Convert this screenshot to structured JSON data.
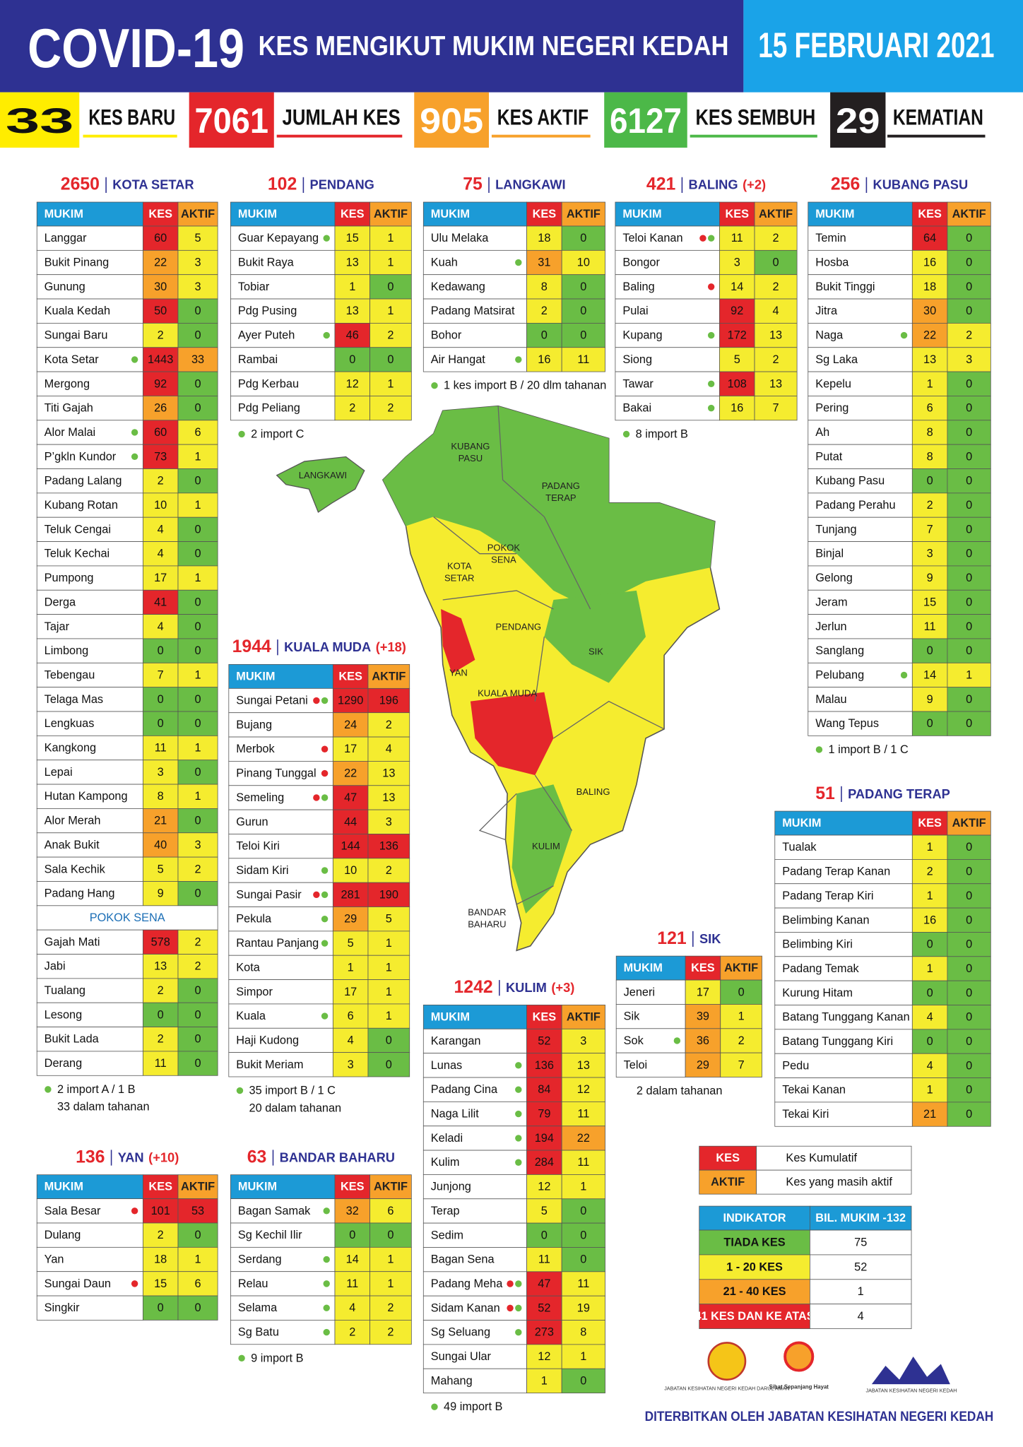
{
  "header": {
    "title": "COVID-19",
    "subtitle": "KES MENGIKUT MUKIM NEGERI KEDAH",
    "date": "15 FEBRUARI 2021"
  },
  "summary": [
    {
      "value": 33,
      "label": "KES BARU",
      "color": "#ffed00",
      "text_color": "#111111"
    },
    {
      "value": 7061,
      "label": "JUMLAH KES",
      "color": "#e4262b",
      "text_color": "#ffffff"
    },
    {
      "value": 905,
      "label": "KES AKTIF",
      "color": "#f7a12b",
      "text_color": "#ffffff"
    },
    {
      "value": 6127,
      "label": "KES SEMBUH",
      "color": "#4cb848",
      "text_color": "#ffffff"
    },
    {
      "value": 29,
      "label": "KEMATIAN",
      "color": "#231f20",
      "text_color": "#ffffff"
    }
  ],
  "columns": [
    "MUKIM",
    "KES",
    "AKTIF"
  ],
  "cell_colors": [
    {
      "max": 0,
      "color": "#6abd45"
    },
    {
      "max": 20,
      "color": "#f5ec2f"
    },
    {
      "max": 40,
      "color": "#f7a12b"
    },
    {
      "color": "#e4262b"
    }
  ],
  "dot_colors": {
    "r": "#e4262b",
    "g": "#6abd45"
  },
  "districts": [
    {
      "total": 2650,
      "name": "KOTA SETAR",
      "rows": [
        {
          "mukim": "Langgar",
          "kes": 60,
          "aktif": 5
        },
        {
          "mukim": "Bukit Pinang",
          "kes": 22,
          "aktif": 3
        },
        {
          "mukim": "Gunung",
          "kes": 30,
          "aktif": 3
        },
        {
          "mukim": "Kuala Kedah",
          "kes": 50,
          "aktif": 0
        },
        {
          "mukim": "Sungai Baru",
          "kes": 2,
          "aktif": 0
        },
        {
          "mukim": "Kota Setar",
          "kes": 1443,
          "aktif": 33,
          "dots": "g"
        },
        {
          "mukim": "Mergong",
          "kes": 92,
          "aktif": 0
        },
        {
          "mukim": "Titi Gajah",
          "kes": 26,
          "aktif": 0
        },
        {
          "mukim": "Alor Malai",
          "kes": 60,
          "aktif": 6,
          "dots": "g"
        },
        {
          "mukim": "P’gkln Kundor",
          "kes": 73,
          "aktif": 1,
          "dots": "g"
        },
        {
          "mukim": "Padang Lalang",
          "kes": 2,
          "aktif": 0
        },
        {
          "mukim": "Kubang Rotan",
          "kes": 10,
          "aktif": 1
        },
        {
          "mukim": "Teluk Cengai",
          "kes": 4,
          "aktif": 0
        },
        {
          "mukim": "Teluk Kechai",
          "kes": 4,
          "aktif": 0
        },
        {
          "mukim": "Pumpong",
          "kes": 17,
          "aktif": 1
        },
        {
          "mukim": "Derga",
          "kes": 41,
          "aktif": 0
        },
        {
          "mukim": "Tajar",
          "kes": 4,
          "aktif": 0
        },
        {
          "mukim": "Limbong",
          "kes": 0,
          "aktif": 0
        },
        {
          "mukim": "Tebengau",
          "kes": 7,
          "aktif": 1
        },
        {
          "mukim": "Telaga Mas",
          "kes": 0,
          "aktif": 0
        },
        {
          "mukim": "Lengkuas",
          "kes": 0,
          "aktif": 0
        },
        {
          "mukim": "Kangkong",
          "kes": 11,
          "aktif": 1
        },
        {
          "mukim": "Lepai",
          "kes": 3,
          "aktif": 0
        },
        {
          "mukim": "Hutan Kampong",
          "kes": 8,
          "aktif": 1
        },
        {
          "mukim": "Alor Merah",
          "kes": 21,
          "aktif": 0
        },
        {
          "mukim": "Anak Bukit",
          "kes": 40,
          "aktif": 3
        },
        {
          "mukim": "Sala Kechik",
          "kes": 5,
          "aktif": 2
        },
        {
          "mukim": "Padang Hang",
          "kes": 9,
          "aktif": 0
        }
      ]
    },
    {
      "name": "POKOK SENA",
      "rows": [
        {
          "mukim": "Gajah Mati",
          "kes": 578,
          "aktif": 2
        },
        {
          "mukim": "Jabi",
          "kes": 13,
          "aktif": 2
        },
        {
          "mukim": "Tualang",
          "kes": 2,
          "aktif": 0
        },
        {
          "mukim": "Lesong",
          "kes": 0,
          "aktif": 0
        },
        {
          "mukim": "Bukit Lada",
          "kes": 2,
          "aktif": 0
        },
        {
          "mukim": "Derang",
          "kes": 11,
          "aktif": 0
        }
      ],
      "notes": [
        {
          "text": "2 import A / 1 B",
          "dot": "g"
        },
        {
          "text": "33 dalam tahanan"
        }
      ]
    },
    {
      "total": 102,
      "name": "PENDANG",
      "rows": [
        {
          "mukim": "Guar Kepayang",
          "kes": 15,
          "aktif": 1,
          "dots": "g"
        },
        {
          "mukim": "Bukit Raya",
          "kes": 13,
          "aktif": 1
        },
        {
          "mukim": "Tobiar",
          "kes": 1,
          "aktif": 0
        },
        {
          "mukim": "Pdg Pusing",
          "kes": 13,
          "aktif": 1
        },
        {
          "mukim": "Ayer Puteh",
          "kes": 46,
          "aktif": 2,
          "dots": "g"
        },
        {
          "mukim": "Rambai",
          "kes": 0,
          "aktif": 0
        },
        {
          "mukim": "Pdg Kerbau",
          "kes": 12,
          "aktif": 1
        },
        {
          "mukim": "Pdg Peliang",
          "kes": 2,
          "aktif": 2
        }
      ],
      "notes": [
        {
          "text": "2 import C",
          "dot": "g"
        }
      ]
    },
    {
      "total": 75,
      "name": "LANGKAWI",
      "rows": [
        {
          "mukim": "Ulu Melaka",
          "kes": 18,
          "aktif": 0
        },
        {
          "mukim": "Kuah",
          "kes": 31,
          "aktif": 10,
          "dots": "g"
        },
        {
          "mukim": "Kedawang",
          "kes": 8,
          "aktif": 0
        },
        {
          "mukim": "Padang Matsirat",
          "kes": 2,
          "aktif": 0
        },
        {
          "mukim": "Bohor",
          "kes": 0,
          "aktif": 0
        },
        {
          "mukim": "Air Hangat",
          "kes": 16,
          "aktif": 11,
          "dots": "g"
        }
      ],
      "notes": [
        {
          "text": "1 kes import B / 20 dlm tahanan",
          "dot": "g"
        }
      ]
    },
    {
      "total": 421,
      "name": "BALING",
      "change": "(+2)",
      "rows": [
        {
          "mukim": "Teloi Kanan",
          "kes": 11,
          "aktif": 2,
          "dots": "rg"
        },
        {
          "mukim": "Bongor",
          "kes": 3,
          "aktif": 0
        },
        {
          "mukim": "Baling",
          "kes": 14,
          "aktif": 2,
          "dots": "r"
        },
        {
          "mukim": "Pulai",
          "kes": 92,
          "aktif": 4
        },
        {
          "mukim": "Kupang",
          "kes": 172,
          "aktif": 13,
          "dots": "g"
        },
        {
          "mukim": "Siong",
          "kes": 5,
          "aktif": 2
        },
        {
          "mukim": "Tawar",
          "kes": 108,
          "aktif": 13,
          "dots": "g"
        },
        {
          "mukim": "Bakai",
          "kes": 16,
          "aktif": 7,
          "dots": "g"
        }
      ],
      "notes": [
        {
          "text": "8 import B",
          "dot": "g"
        }
      ]
    },
    {
      "total": 256,
      "name": "KUBANG PASU",
      "rows": [
        {
          "mukim": "Temin",
          "kes": 64,
          "aktif": 0
        },
        {
          "mukim": "Hosba",
          "kes": 16,
          "aktif": 0
        },
        {
          "mukim": "Bukit Tinggi",
          "kes": 18,
          "aktif": 0
        },
        {
          "mukim": "Jitra",
          "kes": 30,
          "aktif": 0
        },
        {
          "mukim": "Naga",
          "kes": 22,
          "aktif": 2,
          "dots": "g"
        },
        {
          "mukim": "Sg Laka",
          "kes": 13,
          "aktif": 3
        },
        {
          "mukim": "Kepelu",
          "kes": 1,
          "aktif": 0
        },
        {
          "mukim": "Pering",
          "kes": 6,
          "aktif": 0
        },
        {
          "mukim": "Ah",
          "kes": 8,
          "aktif": 0
        },
        {
          "mukim": "Putat",
          "kes": 8,
          "aktif": 0
        },
        {
          "mukim": "Kubang Pasu",
          "kes": 0,
          "aktif": 0
        },
        {
          "mukim": "Padang Perahu",
          "kes": 2,
          "aktif": 0
        },
        {
          "mukim": "Tunjang",
          "kes": 7,
          "aktif": 0
        },
        {
          "mukim": "Binjal",
          "kes": 3,
          "aktif": 0
        },
        {
          "mukim": "Gelong",
          "kes": 9,
          "aktif": 0
        },
        {
          "mukim": "Jeram",
          "kes": 15,
          "aktif": 0
        },
        {
          "mukim": "Jerlun",
          "kes": 11,
          "aktif": 0
        },
        {
          "mukim": "Sanglang",
          "kes": 0,
          "aktif": 0
        },
        {
          "mukim": "Pelubang",
          "kes": 14,
          "aktif": 1,
          "dots": "g"
        },
        {
          "mukim": "Malau",
          "kes": 9,
          "aktif": 0
        },
        {
          "mukim": "Wang Tepus",
          "kes": 0,
          "aktif": 0
        }
      ],
      "notes": [
        {
          "text": "1 import B / 1 C",
          "dot": "g"
        }
      ]
    },
    {
      "total": 1944,
      "name": "KUALA MUDA",
      "change": "(+18)",
      "rows": [
        {
          "mukim": "Sungai Petani",
          "kes": 1290,
          "aktif": 196,
          "dots": "rg"
        },
        {
          "mukim": "Bujang",
          "kes": 24,
          "aktif": 2
        },
        {
          "mukim": "Merbok",
          "kes": 17,
          "aktif": 4,
          "dots": "r"
        },
        {
          "mukim": "Pinang Tunggal",
          "kes": 22,
          "aktif": 13,
          "dots": "r"
        },
        {
          "mukim": "Semeling",
          "kes": 47,
          "aktif": 13,
          "dots": "rg"
        },
        {
          "mukim": "Gurun",
          "kes": 44,
          "aktif": 3
        },
        {
          "mukim": "Teloi Kiri",
          "kes": 144,
          "aktif": 136
        },
        {
          "mukim": "Sidam Kiri",
          "kes": 10,
          "aktif": 2,
          "dots": "g"
        },
        {
          "mukim": "Sungai Pasir",
          "kes": 281,
          "aktif": 190,
          "dots": "rg"
        },
        {
          "mukim": "Pekula",
          "kes": 29,
          "aktif": 5,
          "dots": "g"
        },
        {
          "mukim": "Rantau Panjang",
          "kes": 5,
          "aktif": 1,
          "dots": "g"
        },
        {
          "mukim": "Kota",
          "kes": 1,
          "aktif": 1
        },
        {
          "mukim": "Simpor",
          "kes": 17,
          "aktif": 1
        },
        {
          "mukim": "Kuala",
          "kes": 6,
          "aktif": 1,
          "dots": "g"
        },
        {
          "mukim": "Haji Kudong",
          "kes": 4,
          "aktif": 0
        },
        {
          "mukim": "Bukit Meriam",
          "kes": 3,
          "aktif": 0
        }
      ],
      "notes": [
        {
          "text": "35 import B / 1 C",
          "dot": "g"
        },
        {
          "text": "20 dalam tahanan"
        }
      ]
    },
    {
      "total": 1242,
      "name": "KULIM",
      "change": "(+3)",
      "rows": [
        {
          "mukim": "Karangan",
          "kes": 52,
          "aktif": 3
        },
        {
          "mukim": "Lunas",
          "kes": 136,
          "aktif": 13,
          "dots": "g"
        },
        {
          "mukim": "Padang Cina",
          "kes": 84,
          "aktif": 12,
          "dots": "g"
        },
        {
          "mukim": "Naga Lilit",
          "kes": 79,
          "aktif": 11,
          "dots": "g"
        },
        {
          "mukim": "Keladi",
          "kes": 194,
          "aktif": 22,
          "dots": "g"
        },
        {
          "mukim": "Kulim",
          "kes": 284,
          "aktif": 11,
          "dots": "g"
        },
        {
          "mukim": "Junjong",
          "kes": 12,
          "aktif": 1
        },
        {
          "mukim": "Terap",
          "kes": 5,
          "aktif": 0
        },
        {
          "mukim": "Sedim",
          "kes": 0,
          "aktif": 0
        },
        {
          "mukim": "Bagan Sena",
          "kes": 11,
          "aktif": 0
        },
        {
          "mukim": "Padang Meha",
          "kes": 47,
          "aktif": 11,
          "dots": "rg"
        },
        {
          "mukim": "Sidam Kanan",
          "kes": 52,
          "aktif": 19,
          "dots": "rg"
        },
        {
          "mukim": "Sg Seluang",
          "kes": 273,
          "aktif": 8,
          "dots": "g"
        },
        {
          "mukim": "Sungai Ular",
          "kes": 12,
          "aktif": 1
        },
        {
          "mukim": "Mahang",
          "kes": 1,
          "aktif": 0
        }
      ],
      "notes": [
        {
          "text": "49 import B",
          "dot": "g"
        }
      ]
    },
    {
      "total": 121,
      "name": "SIK",
      "rows": [
        {
          "mukim": "Jeneri",
          "kes": 17,
          "aktif": 0
        },
        {
          "mukim": "Sik",
          "kes": 39,
          "aktif": 1
        },
        {
          "mukim": "Sok",
          "kes": 36,
          "aktif": 2,
          "dots": "g"
        },
        {
          "mukim": "Teloi",
          "kes": 29,
          "aktif": 7
        }
      ],
      "notes": [
        {
          "text": "2 dalam tahanan"
        }
      ]
    },
    {
      "total": 51,
      "name": "PADANG TERAP",
      "rows": [
        {
          "mukim": "Tualak",
          "kes": 1,
          "aktif": 0
        },
        {
          "mukim": "Padang Terap Kanan",
          "kes": 2,
          "aktif": 0
        },
        {
          "mukim": "Padang Terap Kiri",
          "kes": 1,
          "aktif": 0
        },
        {
          "mukim": "Belimbing Kanan",
          "kes": 16,
          "aktif": 0
        },
        {
          "mukim": "Belimbing Kiri",
          "kes": 0,
          "aktif": 0
        },
        {
          "mukim": "Padang Temak",
          "kes": 1,
          "aktif": 0
        },
        {
          "mukim": "Kurung Hitam",
          "kes": 0,
          "aktif": 0
        },
        {
          "mukim": "Batang Tunggang Kanan",
          "kes": 4,
          "aktif": 0
        },
        {
          "mukim": "Batang Tunggang Kiri",
          "kes": 0,
          "aktif": 0
        },
        {
          "mukim": "Pedu",
          "kes": 4,
          "aktif": 0
        },
        {
          "mukim": "Tekai Kanan",
          "kes": 1,
          "aktif": 0
        },
        {
          "mukim": "Tekai Kiri",
          "kes": 21,
          "aktif": 0
        }
      ]
    },
    {
      "total": 136,
      "name": "YAN",
      "change": "(+10)",
      "rows": [
        {
          "mukim": "Sala Besar",
          "kes": 101,
          "aktif": 53,
          "dots": "r"
        },
        {
          "mukim": "Dulang",
          "kes": 2,
          "aktif": 0
        },
        {
          "mukim": "Yan",
          "kes": 18,
          "aktif": 1
        },
        {
          "mukim": "Sungai Daun",
          "kes": 15,
          "aktif": 6,
          "dots": "r"
        },
        {
          "mukim": "Singkir",
          "kes": 0,
          "aktif": 0
        }
      ]
    },
    {
      "total": 63,
      "name": "BANDAR BAHARU",
      "rows": [
        {
          "mukim": "Bagan Samak",
          "kes": 32,
          "aktif": 6,
          "dots": "g"
        },
        {
          "mukim": "Sg Kechil Ilir",
          "kes": 0,
          "aktif": 0
        },
        {
          "mukim": "Serdang",
          "kes": 14,
          "aktif": 1,
          "dots": "g"
        },
        {
          "mukim": "Relau",
          "kes": 11,
          "aktif": 1,
          "dots": "g"
        },
        {
          "mukim": "Selama",
          "kes": 4,
          "aktif": 2,
          "dots": "g"
        },
        {
          "mukim": "Sg Batu",
          "kes": 2,
          "aktif": 2,
          "dots": "g"
        }
      ],
      "notes": [
        {
          "text": "9 import B",
          "dot": "g"
        }
      ]
    }
  ],
  "legend": {
    "keys": [
      {
        "label": "KES",
        "text": "Kes Kumulatif"
      },
      {
        "label": "AKTIF",
        "text": "Kes yang masih aktif"
      }
    ],
    "indicator_header": [
      "INDIKATOR",
      "BIL. MUKIM -132"
    ],
    "indicators": [
      {
        "label": "TIADA KES",
        "count": 75
      },
      {
        "label": "1 - 20 KES",
        "count": 52
      },
      {
        "label": "21 - 40 KES",
        "count": 1
      },
      {
        "label": "41 KES DAN KE ATAS",
        "count": 4
      }
    ]
  },
  "map": {
    "labels": [
      [
        "KUBANG",
        "PASU"
      ],
      [
        "LANGKAWI"
      ],
      [
        "PADANG",
        "TERAP"
      ],
      [
        "POKOK",
        "SENA"
      ],
      [
        "KOTA",
        "SETAR"
      ],
      [
        "PENDANG"
      ],
      [
        "YAN"
      ],
      [
        "SIK"
      ],
      [
        "KUALA MUDA"
      ],
      [
        "BALING"
      ],
      [
        "KULIM"
      ],
      [
        "BANDAR",
        "BAHARU"
      ]
    ]
  },
  "footer": {
    "logos": [
      "JABATAN KESIHATAN NEGERI KEDAH DARUL AMAN",
      "Sihat Sepanjang Hayat",
      "JABATAN KESIHATAN NEGERI KEDAH"
    ],
    "publisher": "DITERBITKAN OLEH JABATAN KESIHATAN NEGERI KEDAH"
  }
}
